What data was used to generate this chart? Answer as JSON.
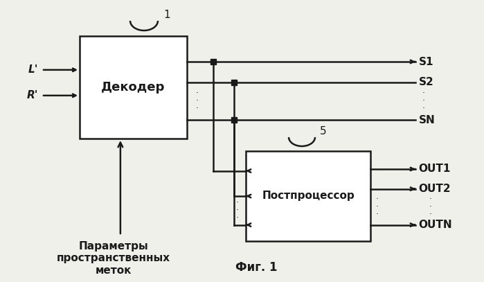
{
  "bg_color": "#f0f0eb",
  "box_color": "#ffffff",
  "box_edge": "#1a1a1a",
  "text_color": "#1a1a1a",
  "decoder_label": "Декодер",
  "postproc_label": "Постпроцессор",
  "label1": "1",
  "label5": "5",
  "input_L": "L'",
  "input_R": "R'",
  "out_S1": "S1",
  "out_S2": "S2",
  "out_SN": "SN",
  "out_OUT1": "OUT1",
  "out_OUT2": "OUT2",
  "out_OUTN": "OUTN",
  "param_text": "Параметры\nпространственных\nметок",
  "fig_label": "Фиг. 1",
  "lw": 1.8,
  "dot_size": 6
}
